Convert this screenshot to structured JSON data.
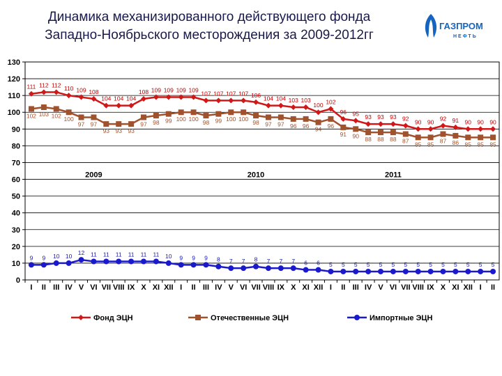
{
  "title_line1": "Динамика механизированного действующего фонда",
  "title_line2": "Западно-Ноябрьского месторождения за 2009-2012гг",
  "logo": {
    "text": "ГАЗПРОМ",
    "subtext": "НЕФТЬ",
    "icon": "gazprom-flame-icon",
    "color": "#1565c0"
  },
  "chart_data": {
    "type": "line",
    "title": "Динамика механизированного действующего фонда Западно-Ноябрьского месторождения за 2009-2012гг",
    "categories": [
      "I",
      "II",
      "III",
      "IV",
      "V",
      "VI",
      "VII",
      "VIII",
      "IX",
      "X",
      "XI",
      "XII",
      "I",
      "II",
      "III",
      "IV",
      "V",
      "VI",
      "VII",
      "VIII",
      "IX",
      "X",
      "XI",
      "XII",
      "I",
      "II",
      "III",
      "IV",
      "V",
      "VI",
      "VII",
      "VIII",
      "IX",
      "X",
      "XI",
      "XII",
      "I",
      "II"
    ],
    "year_labels": [
      {
        "label": "2009",
        "index": 5
      },
      {
        "label": "2010",
        "index": 18
      },
      {
        "label": "2011",
        "index": 29
      }
    ],
    "ylim": [
      0,
      130
    ],
    "yticks": [
      0,
      10,
      20,
      30,
      40,
      50,
      60,
      70,
      80,
      90,
      100,
      110,
      120,
      130
    ],
    "grid": true,
    "legend_position": "bottom",
    "series": [
      {
        "name": "Фонд ЭЦН",
        "color": "#d01818",
        "marker": "diamond",
        "label_class": "lbl",
        "label_pos": "above",
        "values": [
          111,
          112,
          112,
          110,
          109,
          108,
          104,
          104,
          104,
          108,
          109,
          109,
          109,
          109,
          107,
          107,
          107,
          107,
          106,
          104,
          104,
          103,
          103,
          100,
          102,
          96,
          95,
          93,
          93,
          93,
          92,
          90,
          90,
          92,
          91,
          90,
          90,
          90
        ]
      },
      {
        "name": "Отечественные ЭЦН",
        "color": "#a0522d",
        "marker": "square",
        "label_class": "lbl2",
        "label_pos": "below",
        "values": [
          102,
          103,
          102,
          100,
          97,
          97,
          93,
          93,
          93,
          97,
          98,
          99,
          100,
          100,
          98,
          99,
          100,
          100,
          98,
          97,
          97,
          96,
          96,
          94,
          96,
          91,
          90,
          88,
          88,
          88,
          87,
          85,
          85,
          87,
          86,
          85,
          85,
          85
        ]
      },
      {
        "name": "Импортные ЭЦН",
        "color": "#1a1acc",
        "marker": "circle",
        "label_class": "lbl3",
        "label_pos": "above",
        "values": [
          9,
          9,
          10,
          10,
          12,
          11,
          11,
          11,
          11,
          11,
          11,
          10,
          9,
          9,
          9,
          8,
          7,
          7,
          8,
          7,
          7,
          7,
          6,
          6,
          5,
          5,
          5,
          5,
          5,
          5,
          5,
          5,
          5,
          5,
          5,
          5,
          5,
          5
        ]
      }
    ]
  }
}
